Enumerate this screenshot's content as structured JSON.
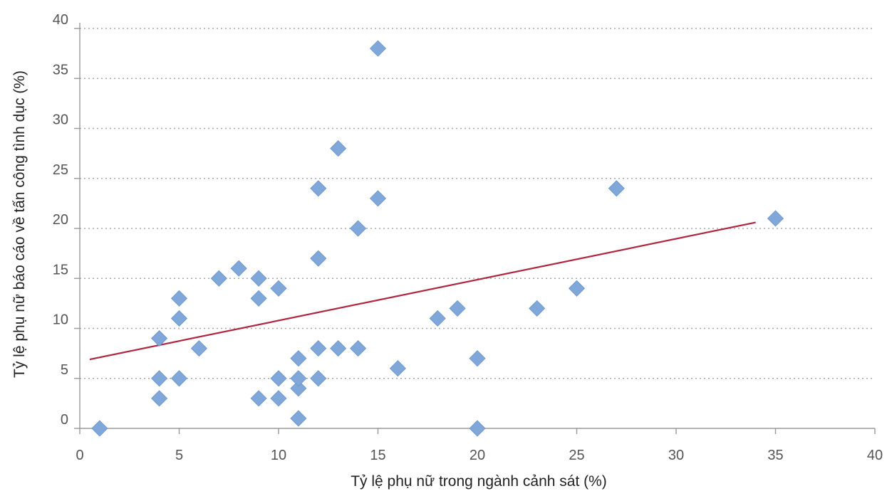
{
  "chart_data": {
    "type": "scatter",
    "title": "",
    "xlabel": "Tỷ lệ phụ nữ trong ngành cảnh sát (%)",
    "ylabel": "Tỷ lệ phụ nữ báo cáo về tấn công tình dục (%)",
    "xlim": [
      0,
      40
    ],
    "ylim": [
      0,
      40
    ],
    "x_ticks": [
      0,
      5,
      10,
      15,
      20,
      25,
      30,
      35,
      40
    ],
    "y_ticks": [
      0,
      5,
      10,
      15,
      20,
      25,
      30,
      35,
      40
    ],
    "grid": "horizontal-dotted",
    "legend": "none",
    "marker_color": "#7fa7d9",
    "trendline_color": "#b0253f",
    "points": [
      {
        "x": 1,
        "y": 0
      },
      {
        "x": 4,
        "y": 3
      },
      {
        "x": 4,
        "y": 5
      },
      {
        "x": 4,
        "y": 9
      },
      {
        "x": 5,
        "y": 5
      },
      {
        "x": 5,
        "y": 11
      },
      {
        "x": 5,
        "y": 13
      },
      {
        "x": 6,
        "y": 8
      },
      {
        "x": 7,
        "y": 15
      },
      {
        "x": 8,
        "y": 16
      },
      {
        "x": 9,
        "y": 3
      },
      {
        "x": 9,
        "y": 13
      },
      {
        "x": 9,
        "y": 15
      },
      {
        "x": 10,
        "y": 3
      },
      {
        "x": 10,
        "y": 5
      },
      {
        "x": 10,
        "y": 14
      },
      {
        "x": 11,
        "y": 1
      },
      {
        "x": 11,
        "y": 4
      },
      {
        "x": 11,
        "y": 5
      },
      {
        "x": 11,
        "y": 7
      },
      {
        "x": 12,
        "y": 5
      },
      {
        "x": 12,
        "y": 8
      },
      {
        "x": 12,
        "y": 17
      },
      {
        "x": 12,
        "y": 24
      },
      {
        "x": 13,
        "y": 8
      },
      {
        "x": 13,
        "y": 28
      },
      {
        "x": 14,
        "y": 8
      },
      {
        "x": 14,
        "y": 20
      },
      {
        "x": 15,
        "y": 23
      },
      {
        "x": 15,
        "y": 38
      },
      {
        "x": 16,
        "y": 6
      },
      {
        "x": 18,
        "y": 11
      },
      {
        "x": 19,
        "y": 12
      },
      {
        "x": 20,
        "y": 0
      },
      {
        "x": 20,
        "y": 7
      },
      {
        "x": 23,
        "y": 12
      },
      {
        "x": 25,
        "y": 14
      },
      {
        "x": 27,
        "y": 24
      },
      {
        "x": 35,
        "y": 21
      }
    ],
    "trendline": {
      "x": [
        0.5,
        34
      ],
      "y": [
        6.9,
        20.6
      ]
    }
  }
}
